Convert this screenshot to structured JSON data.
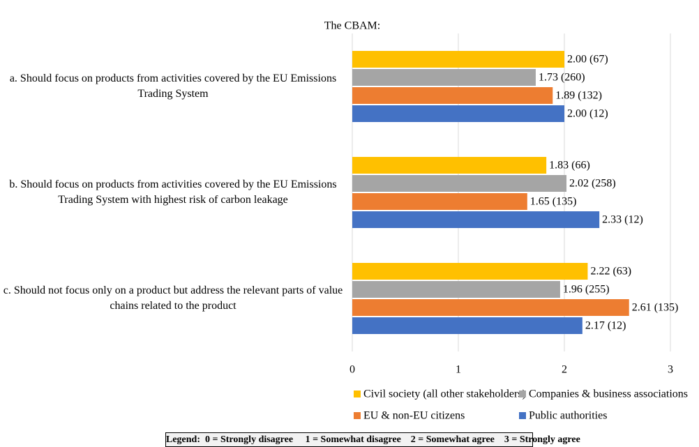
{
  "chart_data": {
    "type": "hbar",
    "title": "The CBAM:",
    "categories": [
      "a. Should focus on products from activities covered by the EU Emissions Trading System",
      "b. Should focus on products from activities covered by the EU Emissions Trading System with highest risk of carbon leakage",
      "c. Should not focus only on a product but address the relevant parts of value chains related to the product"
    ],
    "series": [
      {
        "name": "Civil society (all other stakeholders)",
        "color": "#ffc000",
        "values": [
          2.0,
          1.83,
          2.22
        ],
        "value_labels": [
          "2.00 (67)",
          "1.83 (66)",
          "2.22 (63)"
        ]
      },
      {
        "name": "Companies & business associations",
        "color": "#a5a5a5",
        "values": [
          1.73,
          2.02,
          1.96
        ],
        "value_labels": [
          "1.73 (260)",
          "2.02 (258)",
          "1.96 (255)"
        ]
      },
      {
        "name": "EU & non-EU citizens",
        "color": "#ed7d31",
        "values": [
          1.89,
          1.65,
          2.61
        ],
        "value_labels": [
          "1.89 (132)",
          "1.65 (135)",
          "2.61 (135)"
        ]
      },
      {
        "name": "Public authorities",
        "color": "#4472c4",
        "values": [
          2.0,
          2.33,
          2.17
        ],
        "value_labels": [
          "2.00 (12)",
          "2.33 (12)",
          "2.17 (12)"
        ]
      }
    ],
    "xlim": [
      0,
      3
    ],
    "xticks": [
      0,
      1,
      2,
      3
    ],
    "grid": true,
    "legend": "bottom",
    "note": "Legend:  0 = Strongly disagree     1 = Somewhat disagree    2 = Somewhat agree    3 = Strongly agree"
  }
}
